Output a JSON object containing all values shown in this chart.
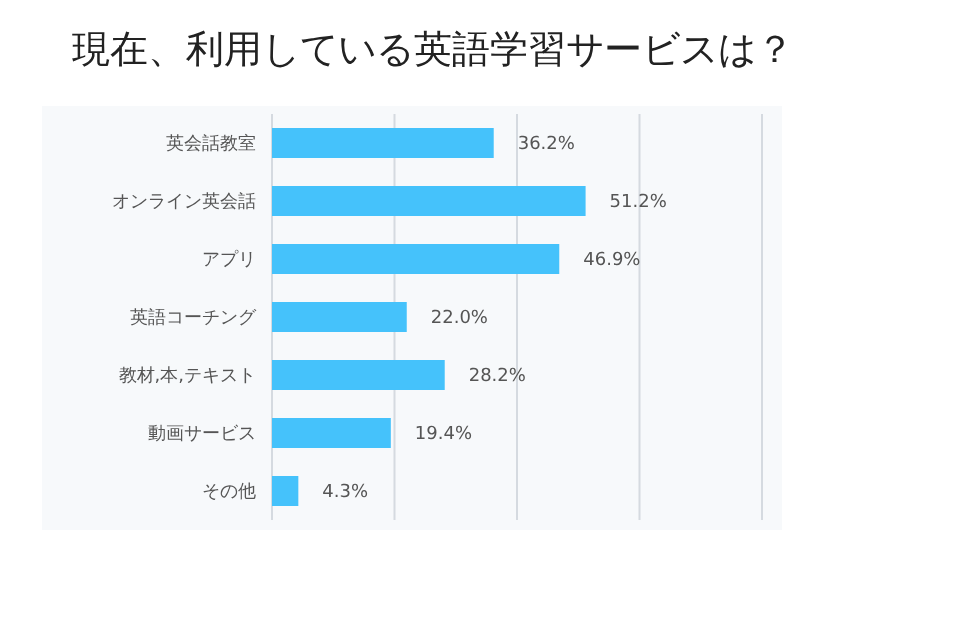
{
  "chart_data": {
    "type": "bar",
    "orientation": "horizontal",
    "title": "現在、利用している英語学習サービスは？",
    "categories": [
      "英会話教室",
      "オンライン英会話",
      "アプリ",
      "英語コーチング",
      "教材,本,テキスト",
      "動画サービス",
      "その他"
    ],
    "values": [
      36.2,
      51.2,
      46.9,
      22.0,
      28.2,
      19.4,
      4.3
    ],
    "value_labels": [
      "36.2%",
      "51.2%",
      "46.9%",
      "22.0%",
      "28.2%",
      "19.4%",
      "4.3%"
    ],
    "color": "#45c2fb",
    "xlim": [
      0,
      80
    ],
    "xticks": [
      {
        "value": 0,
        "label": null
      },
      {
        "value": 20,
        "label": null
      },
      {
        "value": 40,
        "label": null
      },
      {
        "value": 60,
        "label": null
      },
      {
        "value": 80,
        "label": null
      }
    ],
    "grid": "x",
    "tick_labels": "y",
    "legend": false
  }
}
